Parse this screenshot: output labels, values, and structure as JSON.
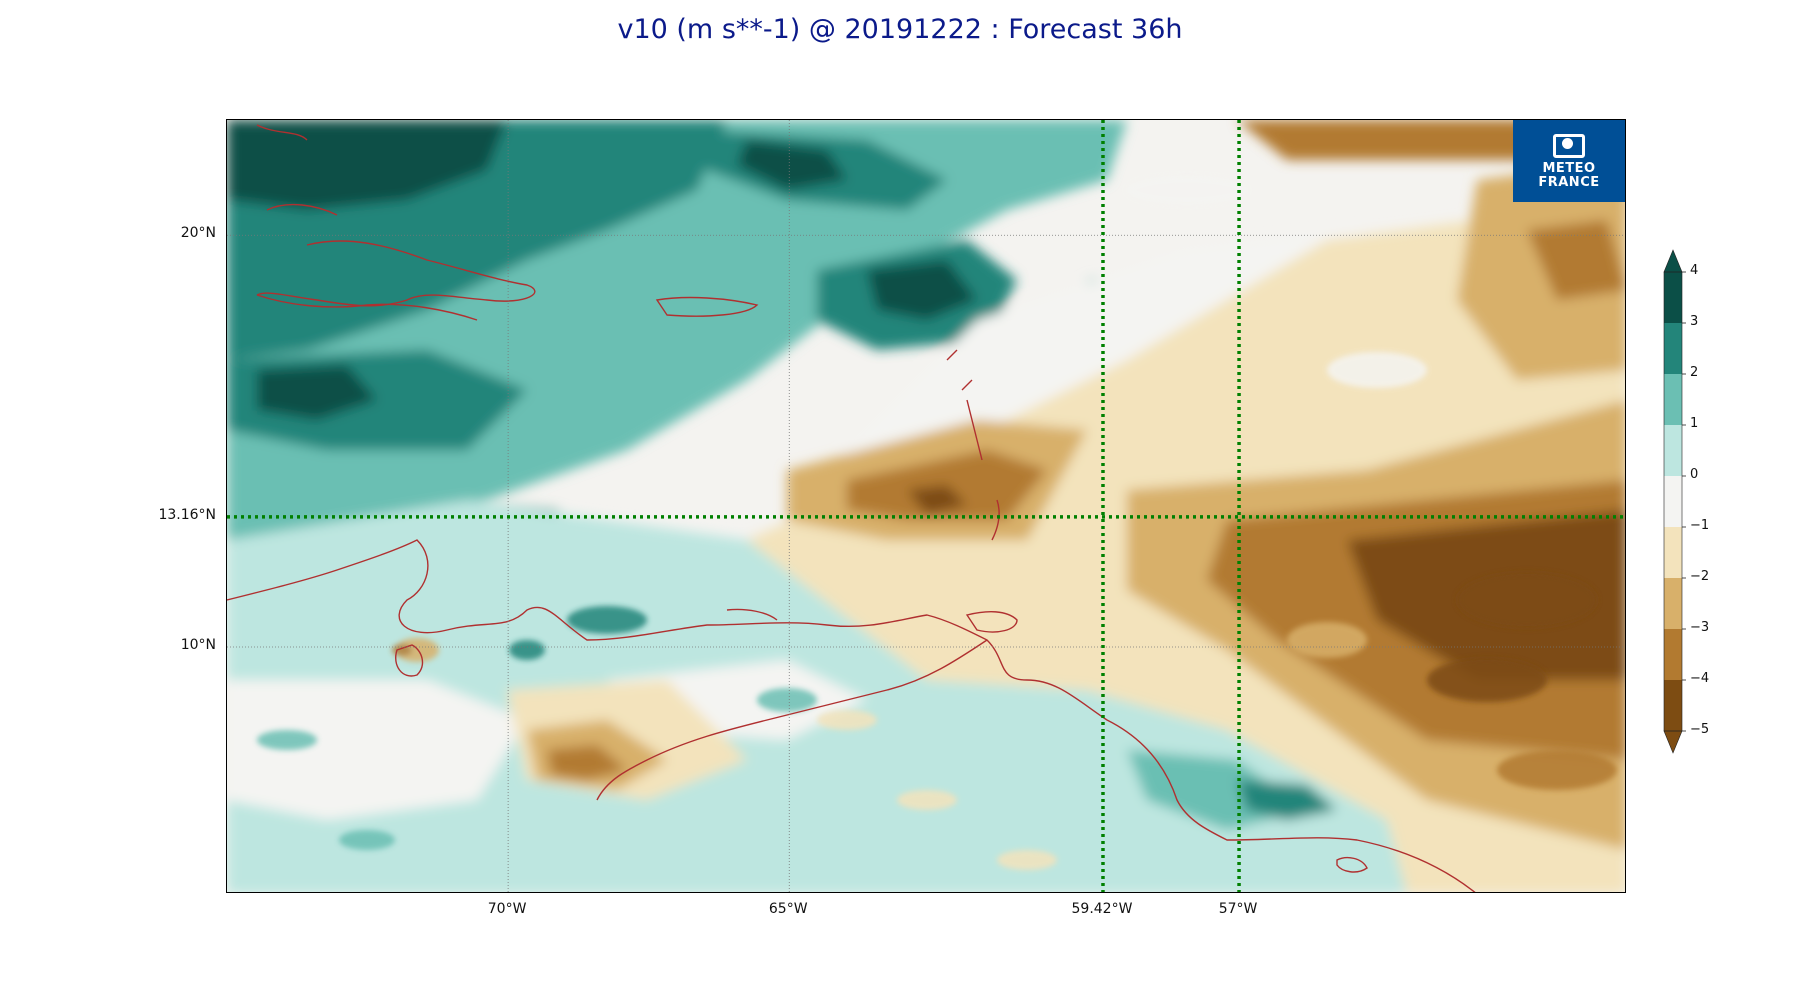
{
  "title": "v10 (m s**-1) @ 20191222 : Forecast 36h",
  "logo": {
    "line1": "METEO",
    "line2": "FRANCE",
    "icon": "meteo-france-logo-icon"
  },
  "axes": {
    "lat_ticks": [
      {
        "value": 20,
        "label": "20°N"
      },
      {
        "value": 13.16,
        "label": "13.16°N"
      },
      {
        "value": 10,
        "label": "10°N"
      }
    ],
    "lon_ticks": [
      {
        "value": -70,
        "label": "70°W"
      },
      {
        "value": -65,
        "label": "65°W"
      },
      {
        "value": -59.42,
        "label": "59.42°W"
      },
      {
        "value": -57,
        "label": "57°W"
      }
    ],
    "lon_range": [
      -75,
      -50.1
    ],
    "lat_range": [
      4,
      22.8
    ]
  },
  "highlight_lines": {
    "lat": [
      13.16
    ],
    "lon": [
      -59.42,
      -57
    ],
    "color": "#008000",
    "style": "dotted"
  },
  "colorbar": {
    "levels": [
      4,
      3,
      2,
      1,
      0,
      -1,
      -2,
      -3,
      -4,
      -5
    ],
    "labels": [
      "4",
      "3",
      "2",
      "1",
      "0",
      "−1",
      "−2",
      "−3",
      "−4",
      "−5"
    ],
    "colors": [
      "#0b4f47",
      "#23857a",
      "#6bbfb3",
      "#bde6e0",
      "#f4f4f2",
      "#f3e3bc",
      "#d8b06a",
      "#b27a30",
      "#7d4c12"
    ],
    "extend": "both"
  },
  "coastline_color": "#b03030"
}
